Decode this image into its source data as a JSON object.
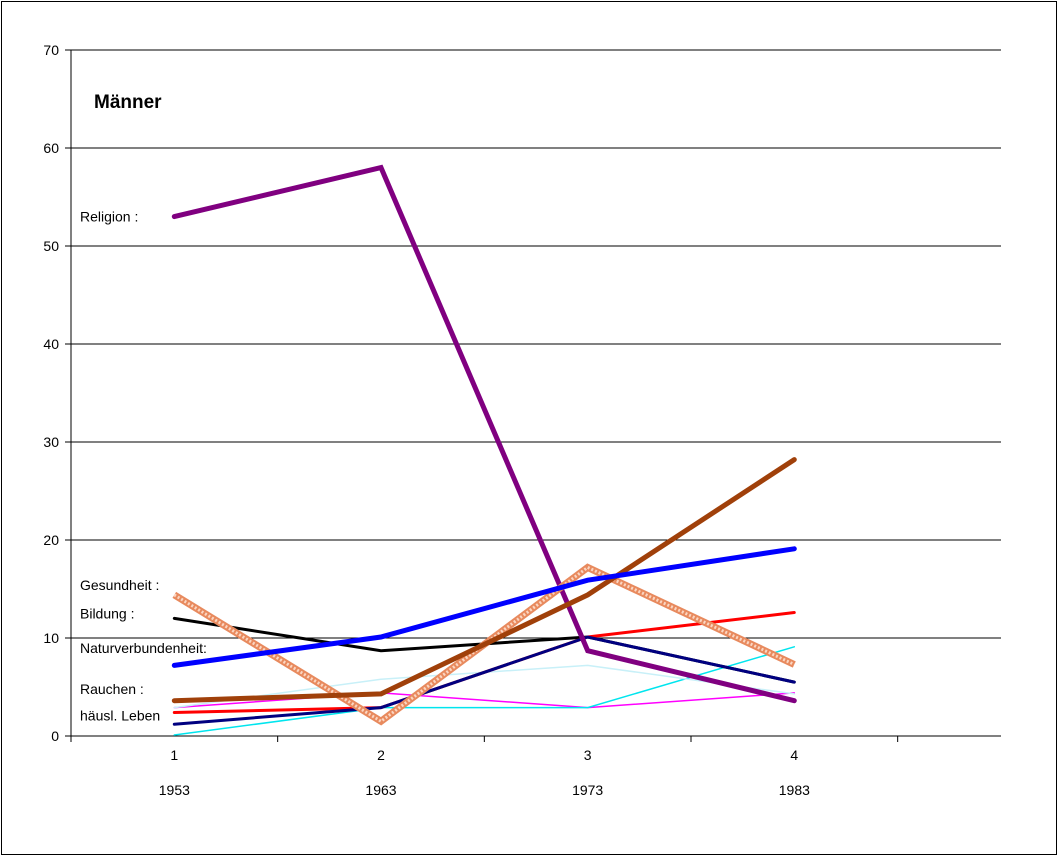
{
  "chart_data": {
    "type": "line",
    "title": "Männer",
    "x": [
      1,
      2,
      3,
      4
    ],
    "x_tick_labels": [
      "1",
      "2",
      "3",
      "4"
    ],
    "x_year_labels": [
      "1953",
      "1963",
      "1973",
      "1983"
    ],
    "xlim": [
      0.5,
      5.0
    ],
    "ylim": [
      0,
      70
    ],
    "y_ticks": [
      0,
      10,
      20,
      30,
      40,
      50,
      60,
      70
    ],
    "grid": "horizontal",
    "annotations": [
      {
        "text": "Religion :",
        "y": 53
      },
      {
        "text": "Gesundheit :",
        "y": 15.4
      },
      {
        "text": "Bildung :",
        "y": 12.5
      },
      {
        "text": "Naturverbundenheit:",
        "y": 9.0
      },
      {
        "text": "Rauchen :",
        "y": 4.8
      },
      {
        "text": "häusl. Leben",
        "y": 2.1
      }
    ],
    "series": [
      {
        "values": [
          53,
          58,
          8.7,
          3.6
        ],
        "color": "#800080",
        "style": "thick"
      },
      {
        "values": [
          14.4,
          1.5,
          17.2,
          7.3
        ],
        "color": "#f4a582",
        "style": "hatched"
      },
      {
        "values": [
          3.6,
          4.3,
          14.4,
          28.2
        ],
        "color": "#a0400a",
        "style": "thick"
      },
      {
        "values": [
          7.2,
          10.1,
          15.9,
          19.1
        ],
        "color": "#0000ff",
        "style": "thick"
      },
      {
        "values": [
          12.0,
          8.7,
          10.1,
          5.5
        ],
        "color": "#000000",
        "style": "medium"
      },
      {
        "values": [
          2.4,
          2.9,
          10.1,
          12.6
        ],
        "color": "#ff0000",
        "style": "medium"
      },
      {
        "values": [
          1.2,
          2.9,
          10.1,
          5.5
        ],
        "color": "#000080",
        "style": "medium"
      },
      {
        "values": [
          2.9,
          4.4,
          2.9,
          4.4
        ],
        "color": "#ff00ff",
        "style": "thin"
      },
      {
        "values": [
          0.1,
          2.9,
          2.9,
          9.1
        ],
        "color": "#00e5ee",
        "style": "thin"
      },
      {
        "values": [
          2.9,
          5.8,
          7.2,
          4.3
        ],
        "color": "#c8f0f8",
        "style": "thin"
      }
    ]
  }
}
